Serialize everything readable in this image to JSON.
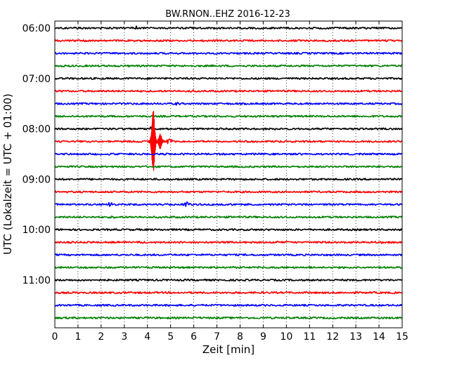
{
  "chart_data": {
    "type": "line",
    "title": "BW.RNON..EHZ 2016-12-23",
    "xlabel": "Zeit  [min]",
    "ylabel": "UTC (Lokalzeit = UTC + 01:00)",
    "xlim": [
      0,
      15
    ],
    "x_ticks": [
      "0",
      "1",
      "2",
      "3",
      "4",
      "5",
      "6",
      "7",
      "8",
      "9",
      "10",
      "11",
      "12",
      "13",
      "14",
      "15"
    ],
    "y_ticks": [
      "06:00",
      "07:00",
      "08:00",
      "09:00",
      "10:00",
      "11:00"
    ],
    "grid": true,
    "trace_interval_min": 15,
    "trace_colors": [
      "#000000",
      "#ff0000",
      "#0000ff",
      "#008000"
    ],
    "traces": [
      {
        "start": "06:00",
        "color": "#000000",
        "events": [
          {
            "t": 3.5,
            "amp": 0.3
          }
        ]
      },
      {
        "start": "06:15",
        "color": "#ff0000",
        "events": [
          {
            "t": 12.6,
            "amp": 0.4
          }
        ]
      },
      {
        "start": "06:30",
        "color": "#0000ff",
        "events": []
      },
      {
        "start": "06:45",
        "color": "#008000",
        "events": []
      },
      {
        "start": "07:00",
        "color": "#000000",
        "events": []
      },
      {
        "start": "07:15",
        "color": "#ff0000",
        "events": [
          {
            "t": 5.9,
            "amp": 0.3
          }
        ]
      },
      {
        "start": "07:30",
        "color": "#0000ff",
        "events": [
          {
            "t": 5.3,
            "amp": 0.2
          }
        ]
      },
      {
        "start": "07:45",
        "color": "#008000",
        "events": []
      },
      {
        "start": "08:00",
        "color": "#000000",
        "events": [
          {
            "t": 4.2,
            "amp": 0.6
          }
        ]
      },
      {
        "start": "08:15",
        "color": "#ff0000",
        "events": [
          {
            "t": 4.25,
            "amp": 6.0
          },
          {
            "t": 4.55,
            "amp": 1.5
          },
          {
            "t": 4.95,
            "amp": 0.8
          }
        ]
      },
      {
        "start": "08:30",
        "color": "#0000ff",
        "events": [
          {
            "t": 2.4,
            "amp": 0.2
          }
        ]
      },
      {
        "start": "08:45",
        "color": "#008000",
        "events": []
      },
      {
        "start": "09:00",
        "color": "#000000",
        "events": []
      },
      {
        "start": "09:15",
        "color": "#ff0000",
        "events": []
      },
      {
        "start": "09:30",
        "color": "#0000ff",
        "events": [
          {
            "t": 2.4,
            "amp": 0.4
          },
          {
            "t": 4.0,
            "amp": 0.35
          },
          {
            "t": 5.7,
            "amp": 0.45
          }
        ]
      },
      {
        "start": "09:45",
        "color": "#008000",
        "events": [
          {
            "t": 2.5,
            "amp": 0.2
          }
        ]
      },
      {
        "start": "10:00",
        "color": "#000000",
        "events": []
      },
      {
        "start": "10:15",
        "color": "#ff0000",
        "events": [
          {
            "t": 9.6,
            "amp": 0.4
          },
          {
            "t": 14.0,
            "amp": 0.35
          }
        ]
      },
      {
        "start": "10:30",
        "color": "#0000ff",
        "events": []
      },
      {
        "start": "10:45",
        "color": "#008000",
        "events": [
          {
            "t": 7.6,
            "amp": 0.2
          }
        ]
      },
      {
        "start": "11:00",
        "color": "#000000",
        "events": []
      },
      {
        "start": "11:15",
        "color": "#ff0000",
        "events": []
      },
      {
        "start": "11:30",
        "color": "#0000ff",
        "events": []
      },
      {
        "start": "11:45",
        "color": "#008000",
        "events": []
      }
    ]
  }
}
